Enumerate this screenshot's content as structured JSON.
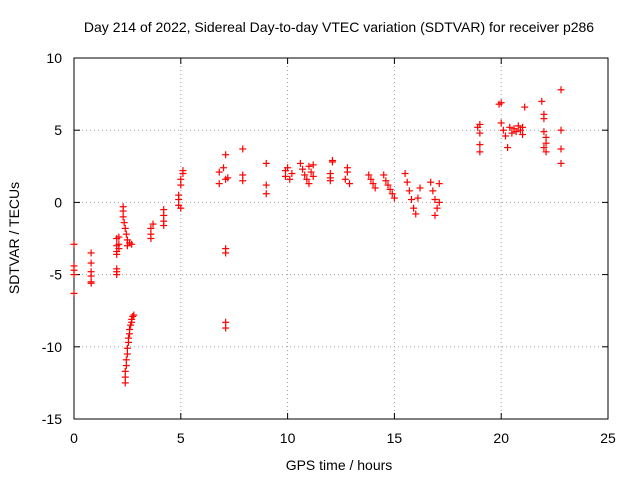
{
  "chart_data": {
    "type": "scatter",
    "title": "Day 214 of 2022, Sidereal Day-to-day VTEC variation (SDTVAR) for receiver p286",
    "xlabel": "GPS time / hours",
    "ylabel": "SDTVAR / TECUs",
    "xlim": [
      0,
      25
    ],
    "ylim": [
      -15,
      10
    ],
    "xticks": [
      0,
      5,
      10,
      15,
      20,
      25
    ],
    "yticks": [
      -15,
      -10,
      -5,
      0,
      5,
      10
    ],
    "grid": true,
    "marker": "+",
    "color": "#ff0000",
    "series": [
      {
        "name": "SDTVAR",
        "points": [
          [
            0.0,
            -2.9
          ],
          [
            0.0,
            -4.4
          ],
          [
            0.0,
            -4.7
          ],
          [
            0.0,
            -5.0
          ],
          [
            0.0,
            -6.3
          ],
          [
            0.8,
            -3.5
          ],
          [
            0.8,
            -4.2
          ],
          [
            0.8,
            -4.8
          ],
          [
            0.8,
            -5.1
          ],
          [
            0.8,
            -5.5
          ],
          [
            0.8,
            -5.6
          ],
          [
            2.0,
            -2.5
          ],
          [
            2.0,
            -3.0
          ],
          [
            2.0,
            -3.4
          ],
          [
            2.0,
            -3.6
          ],
          [
            2.0,
            -4.6
          ],
          [
            2.0,
            -4.8
          ],
          [
            2.0,
            -5.0
          ],
          [
            2.1,
            -2.4
          ],
          [
            2.1,
            -2.9
          ],
          [
            2.1,
            -3.2
          ],
          [
            2.3,
            -0.3
          ],
          [
            2.3,
            -0.6
          ],
          [
            2.3,
            -1.0
          ],
          [
            2.35,
            -1.4
          ],
          [
            2.4,
            -1.8
          ],
          [
            2.45,
            -2.2
          ],
          [
            2.5,
            -2.6
          ],
          [
            2.5,
            -3.0
          ],
          [
            2.6,
            -2.8
          ],
          [
            2.7,
            -2.9
          ],
          [
            2.4,
            -12.5
          ],
          [
            2.4,
            -12.1
          ],
          [
            2.4,
            -11.7
          ],
          [
            2.45,
            -11.3
          ],
          [
            2.45,
            -10.9
          ],
          [
            2.5,
            -10.5
          ],
          [
            2.5,
            -10.1
          ],
          [
            2.55,
            -9.7
          ],
          [
            2.55,
            -9.4
          ],
          [
            2.6,
            -9.1
          ],
          [
            2.6,
            -8.8
          ],
          [
            2.65,
            -8.5
          ],
          [
            2.7,
            -8.3
          ],
          [
            2.7,
            -8.1
          ],
          [
            2.75,
            -7.9
          ],
          [
            2.8,
            -7.8
          ],
          [
            3.6,
            -1.8
          ],
          [
            3.6,
            -2.2
          ],
          [
            3.6,
            -2.5
          ],
          [
            3.7,
            -1.5
          ],
          [
            4.2,
            -0.5
          ],
          [
            4.2,
            -0.9
          ],
          [
            4.2,
            -1.3
          ],
          [
            4.2,
            -1.6
          ],
          [
            4.9,
            -0.2
          ],
          [
            4.9,
            0.2
          ],
          [
            4.9,
            0.5
          ],
          [
            5.0,
            1.2
          ],
          [
            5.0,
            1.6
          ],
          [
            5.1,
            2.0
          ],
          [
            5.1,
            2.2
          ],
          [
            5.0,
            -0.4
          ],
          [
            6.8,
            2.1
          ],
          [
            6.8,
            1.3
          ],
          [
            7.0,
            2.4
          ],
          [
            7.1,
            3.3
          ],
          [
            7.1,
            1.6
          ],
          [
            7.2,
            1.7
          ],
          [
            7.1,
            -3.2
          ],
          [
            7.1,
            -3.5
          ],
          [
            7.1,
            -8.3
          ],
          [
            7.1,
            -8.7
          ],
          [
            7.9,
            3.7
          ],
          [
            7.9,
            1.9
          ],
          [
            7.9,
            1.5
          ],
          [
            9.0,
            2.7
          ],
          [
            9.0,
            1.2
          ],
          [
            9.0,
            0.6
          ],
          [
            9.9,
            1.8
          ],
          [
            9.9,
            2.2
          ],
          [
            10.0,
            2.4
          ],
          [
            10.1,
            1.6
          ],
          [
            10.2,
            2.0
          ],
          [
            10.6,
            2.7
          ],
          [
            10.7,
            2.3
          ],
          [
            10.8,
            1.9
          ],
          [
            10.9,
            1.6
          ],
          [
            11.0,
            1.3
          ],
          [
            11.0,
            2.5
          ],
          [
            11.1,
            2.1
          ],
          [
            11.2,
            1.8
          ],
          [
            11.2,
            2.6
          ],
          [
            12.0,
            1.5
          ],
          [
            12.0,
            1.7
          ],
          [
            12.0,
            2.0
          ],
          [
            12.1,
            2.8
          ],
          [
            12.1,
            2.9
          ],
          [
            12.7,
            1.6
          ],
          [
            12.8,
            2.1
          ],
          [
            12.8,
            2.4
          ],
          [
            12.9,
            1.3
          ],
          [
            13.8,
            1.9
          ],
          [
            13.9,
            1.6
          ],
          [
            14.0,
            1.3
          ],
          [
            14.1,
            1.0
          ],
          [
            14.5,
            1.9
          ],
          [
            14.6,
            1.5
          ],
          [
            14.7,
            1.2
          ],
          [
            14.8,
            0.9
          ],
          [
            14.9,
            0.6
          ],
          [
            15.0,
            0.3
          ],
          [
            15.5,
            2.0
          ],
          [
            15.6,
            1.4
          ],
          [
            15.7,
            0.8
          ],
          [
            15.8,
            0.2
          ],
          [
            15.9,
            -0.4
          ],
          [
            16.0,
            -0.8
          ],
          [
            16.1,
            0.3
          ],
          [
            16.2,
            1.0
          ],
          [
            16.7,
            1.4
          ],
          [
            16.8,
            0.8
          ],
          [
            16.9,
            0.2
          ],
          [
            17.0,
            -0.4
          ],
          [
            16.9,
            -0.9
          ],
          [
            17.1,
            1.3
          ],
          [
            17.1,
            0.0
          ],
          [
            18.9,
            5.2
          ],
          [
            19.0,
            5.4
          ],
          [
            19.0,
            4.8
          ],
          [
            19.0,
            4.0
          ],
          [
            19.0,
            3.5
          ],
          [
            19.9,
            6.8
          ],
          [
            20.0,
            6.9
          ],
          [
            20.0,
            5.5
          ],
          [
            20.1,
            5.0
          ],
          [
            20.2,
            4.6
          ],
          [
            20.3,
            3.8
          ],
          [
            20.4,
            5.2
          ],
          [
            20.5,
            4.8
          ],
          [
            20.6,
            5.1
          ],
          [
            20.7,
            4.9
          ],
          [
            20.8,
            5.3
          ],
          [
            20.9,
            5.0
          ],
          [
            21.0,
            5.2
          ],
          [
            21.0,
            4.7
          ],
          [
            21.1,
            6.6
          ],
          [
            21.9,
            7.0
          ],
          [
            22.0,
            6.1
          ],
          [
            22.0,
            5.8
          ],
          [
            22.0,
            4.9
          ],
          [
            22.1,
            4.5
          ],
          [
            22.1,
            4.1
          ],
          [
            22.0,
            3.8
          ],
          [
            22.1,
            3.5
          ],
          [
            22.8,
            7.8
          ],
          [
            22.8,
            5.0
          ],
          [
            22.8,
            3.7
          ],
          [
            22.8,
            2.7
          ]
        ]
      }
    ]
  }
}
